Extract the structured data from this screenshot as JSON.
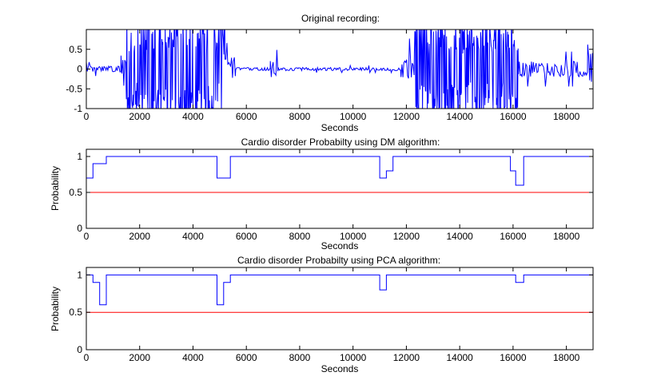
{
  "chart_data": [
    {
      "type": "line",
      "title": "Original recording:",
      "xlabel": "Seconds",
      "ylabel": "",
      "xlim": [
        0,
        19000
      ],
      "ylim": [
        -1,
        1
      ],
      "x_ticks": [
        "0",
        "2000",
        "4000",
        "6000",
        "8000",
        "10000",
        "12000",
        "14000",
        "16000",
        "18000"
      ],
      "y_ticks": [
        "-1",
        "-0.5",
        "0",
        "0.5"
      ],
      "grid": false,
      "line_color": "#0000ff",
      "segments": [
        {
          "x_start": 0,
          "x_end": 1300,
          "amplitude": 0.08
        },
        {
          "x_start": 1300,
          "x_end": 1500,
          "amplitude": 0.45
        },
        {
          "x_start": 1500,
          "x_end": 5200,
          "amplitude": 1.0
        },
        {
          "x_start": 5200,
          "x_end": 5600,
          "amplitude": 0.3
        },
        {
          "x_start": 5600,
          "x_end": 6900,
          "amplitude": 0.04
        },
        {
          "x_start": 6900,
          "x_end": 7200,
          "amplitude": 0.22
        },
        {
          "x_start": 7200,
          "x_end": 11800,
          "amplitude": 0.04
        },
        {
          "x_start": 11800,
          "x_end": 12300,
          "amplitude": 0.35
        },
        {
          "x_start": 12300,
          "x_end": 16200,
          "amplitude": 1.0
        },
        {
          "x_start": 16200,
          "x_end": 18800,
          "amplitude": 0.2
        },
        {
          "x_start": 18800,
          "x_end": 19000,
          "amplitude": 0.8
        }
      ]
    },
    {
      "type": "line",
      "title": "Cardio disorder Probabilty using DM algorithm:",
      "xlabel": "Seconds",
      "ylabel": "Probability",
      "xlim": [
        0,
        19000
      ],
      "ylim": [
        0,
        1.1
      ],
      "x_ticks": [
        "0",
        "2000",
        "4000",
        "6000",
        "8000",
        "10000",
        "12000",
        "14000",
        "16000",
        "18000"
      ],
      "y_ticks": [
        "0",
        "0.5",
        "1"
      ],
      "grid": false,
      "series": [
        {
          "name": "probability",
          "color": "#0000ff",
          "step": true,
          "x": [
            0,
            250,
            750,
            4900,
            5400,
            11000,
            11250,
            11500,
            15900,
            16100,
            16400,
            19000
          ],
          "y": [
            0.7,
            0.9,
            1.0,
            0.7,
            1.0,
            0.7,
            0.8,
            1.0,
            0.8,
            0.6,
            1.0,
            1.0
          ]
        },
        {
          "name": "threshold",
          "color": "#ff0000",
          "x": [
            0,
            19000
          ],
          "y": [
            0.5,
            0.5
          ]
        }
      ]
    },
    {
      "type": "line",
      "title": "Cardio disorder Probabilty using PCA algorithm:",
      "xlabel": "Seconds",
      "ylabel": "Probability",
      "xlim": [
        0,
        19000
      ],
      "ylim": [
        0,
        1.1
      ],
      "x_ticks": [
        "0",
        "2000",
        "4000",
        "6000",
        "8000",
        "10000",
        "12000",
        "14000",
        "16000",
        "18000"
      ],
      "y_ticks": [
        "0",
        "0.5",
        "1"
      ],
      "grid": false,
      "series": [
        {
          "name": "probability",
          "color": "#0000ff",
          "step": true,
          "x": [
            0,
            250,
            500,
            750,
            4900,
            5150,
            5400,
            11000,
            11250,
            16100,
            16400,
            19000
          ],
          "y": [
            1.0,
            0.9,
            0.6,
            1.0,
            0.6,
            0.9,
            1.0,
            0.8,
            1.0,
            0.9,
            1.0,
            1.0
          ]
        },
        {
          "name": "threshold",
          "color": "#ff0000",
          "x": [
            0,
            19000
          ],
          "y": [
            0.5,
            0.5
          ]
        }
      ]
    }
  ]
}
